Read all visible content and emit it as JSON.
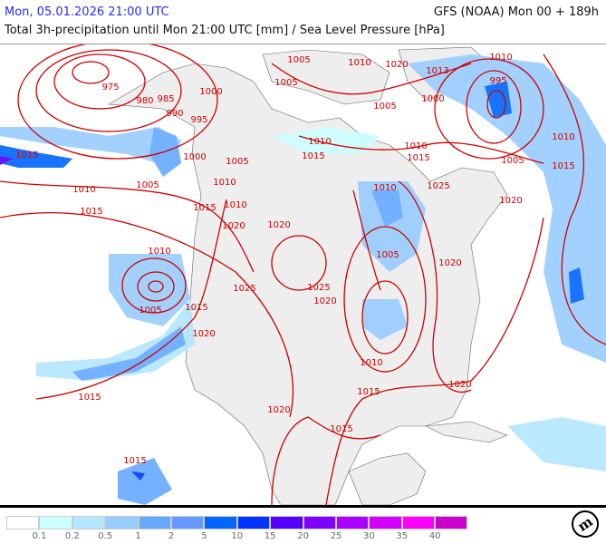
{
  "header": {
    "valid_time": "Mon, 05.01.2026 21:00 UTC",
    "model_run": "GFS (NOAA) Mon 00 + 189h",
    "subtitle": "Total 3h-precipitation until Mon 21:00 UTC [mm] / Sea Level Pressure [hPa]"
  },
  "legend": {
    "colors": [
      "#ffffff",
      "#ccffff",
      "#b3e6ff",
      "#99ccff",
      "#66aaff",
      "#6699ff",
      "#0066ff",
      "#0033ff",
      "#5500ff",
      "#7f00ff",
      "#aa00ff",
      "#d400ff",
      "#ff00ff",
      "#cc00cc"
    ],
    "ticks": [
      "0.1",
      "0.2",
      "0.5",
      "1",
      "2",
      "5",
      "10",
      "15",
      "20",
      "25",
      "30",
      "35",
      "40"
    ]
  },
  "map": {
    "land_color": "#eeeeee",
    "isobar_color": "#cc0000",
    "isobar_labels": [
      "975",
      "980",
      "985",
      "990",
      "995",
      "1000",
      "1005",
      "1010",
      "1020",
      "1013",
      "1010",
      "995",
      "1000",
      "1005",
      "1005",
      "1010",
      "1010",
      "1015",
      "1015",
      "1010",
      "1015",
      "1005",
      "1015",
      "1010",
      "1005",
      "1015",
      "1000",
      "1005",
      "1010",
      "1010",
      "1015",
      "1020",
      "1020",
      "1010",
      "1025",
      "1020",
      "1005",
      "1020",
      "1010",
      "1005",
      "1015",
      "1025",
      "1025",
      "1020",
      "1020",
      "1010",
      "1015",
      "1020",
      "1015",
      "1020",
      "1015",
      "1015"
    ]
  },
  "logo": "m"
}
